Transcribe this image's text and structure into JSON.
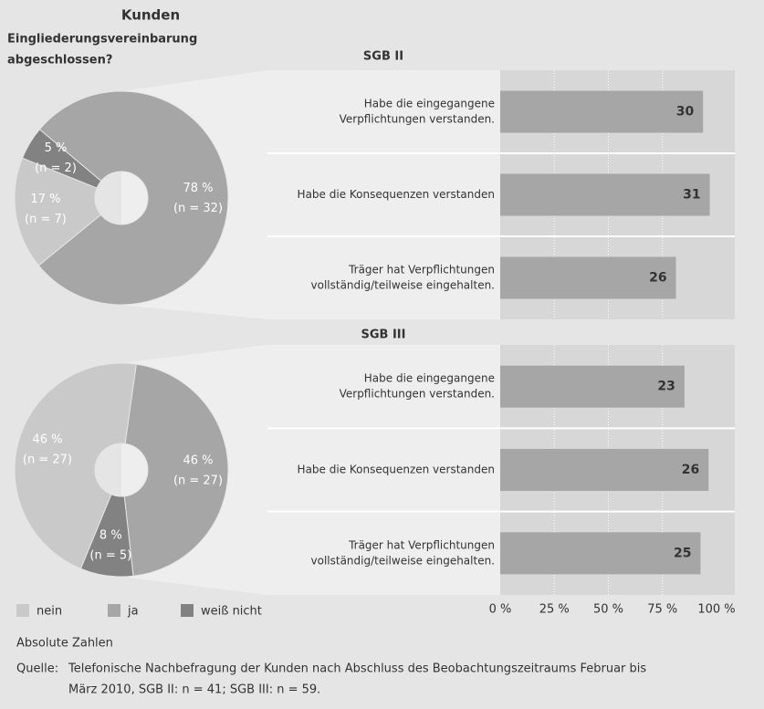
{
  "chart_data": [
    {
      "type": "pie",
      "title": "Kunden",
      "subtitle": [
        "Eingliederungsvereinbarung",
        "abgeschlossen?"
      ],
      "categories": [
        "nein",
        "ja",
        "weiß nicht"
      ],
      "colors": [
        "#c9c9c9",
        "#a6a6a6",
        "#828282"
      ],
      "values": [
        17,
        78,
        5
      ],
      "value_labels": [
        "17 %",
        "78 %",
        "5 %"
      ],
      "count_labels": [
        "(n = 7)",
        "(n = 32)",
        "(n = 2)"
      ]
    },
    {
      "type": "bar",
      "title": "SGB II",
      "categories": [
        [
          "Habe die eingegangene",
          "Verpflichtungen verstanden."
        ],
        [
          "Habe die Konsequenzen verstanden"
        ],
        [
          "Träger hat Verpflichtungen",
          "vollständig/teilweise eingehalten."
        ]
      ],
      "values": [
        30,
        31,
        26
      ],
      "color": "#a6a6a6",
      "xlim": [
        0,
        32
      ],
      "xticks": [
        0,
        8,
        16,
        24,
        32
      ],
      "grid": true
    },
    {
      "type": "pie",
      "values": [
        46,
        46,
        8
      ],
      "value_labels": [
        "46 %",
        "46 %",
        "8 %"
      ],
      "count_labels": [
        "(n = 27)",
        "(n = 27)",
        "(n = 5)"
      ]
    },
    {
      "type": "bar",
      "title": "SGB III",
      "categories": [
        [
          "Habe die eingegangene",
          "Verpflichtungen verstanden."
        ],
        [
          "Habe die Konsequenzen verstanden"
        ],
        [
          "Träger hat Verpflichtungen",
          "vollständig/teilweise eingehalten."
        ]
      ],
      "values": [
        23,
        26,
        25
      ],
      "color": "#a6a6a6",
      "xlim": [
        0,
        27
      ],
      "xticks": [
        {
          "value": 0,
          "label": "0 %"
        },
        {
          "value": 6.75,
          "label": "25 %"
        },
        {
          "value": 13.5,
          "label": "50 %"
        },
        {
          "value": 20.25,
          "label": "75 %"
        },
        {
          "value": 27,
          "label": "100 %"
        }
      ],
      "grid": true
    }
  ],
  "footer": {
    "note": "Absolute Zahlen",
    "source_label": "Quelle:",
    "source": [
      "Telefonische Nachbefragung der Kunden nach Abschluss des Beobachtungszeitraums Februar bis",
      "März 2010, SGB II: n = 41; SGB III: n = 59."
    ]
  }
}
